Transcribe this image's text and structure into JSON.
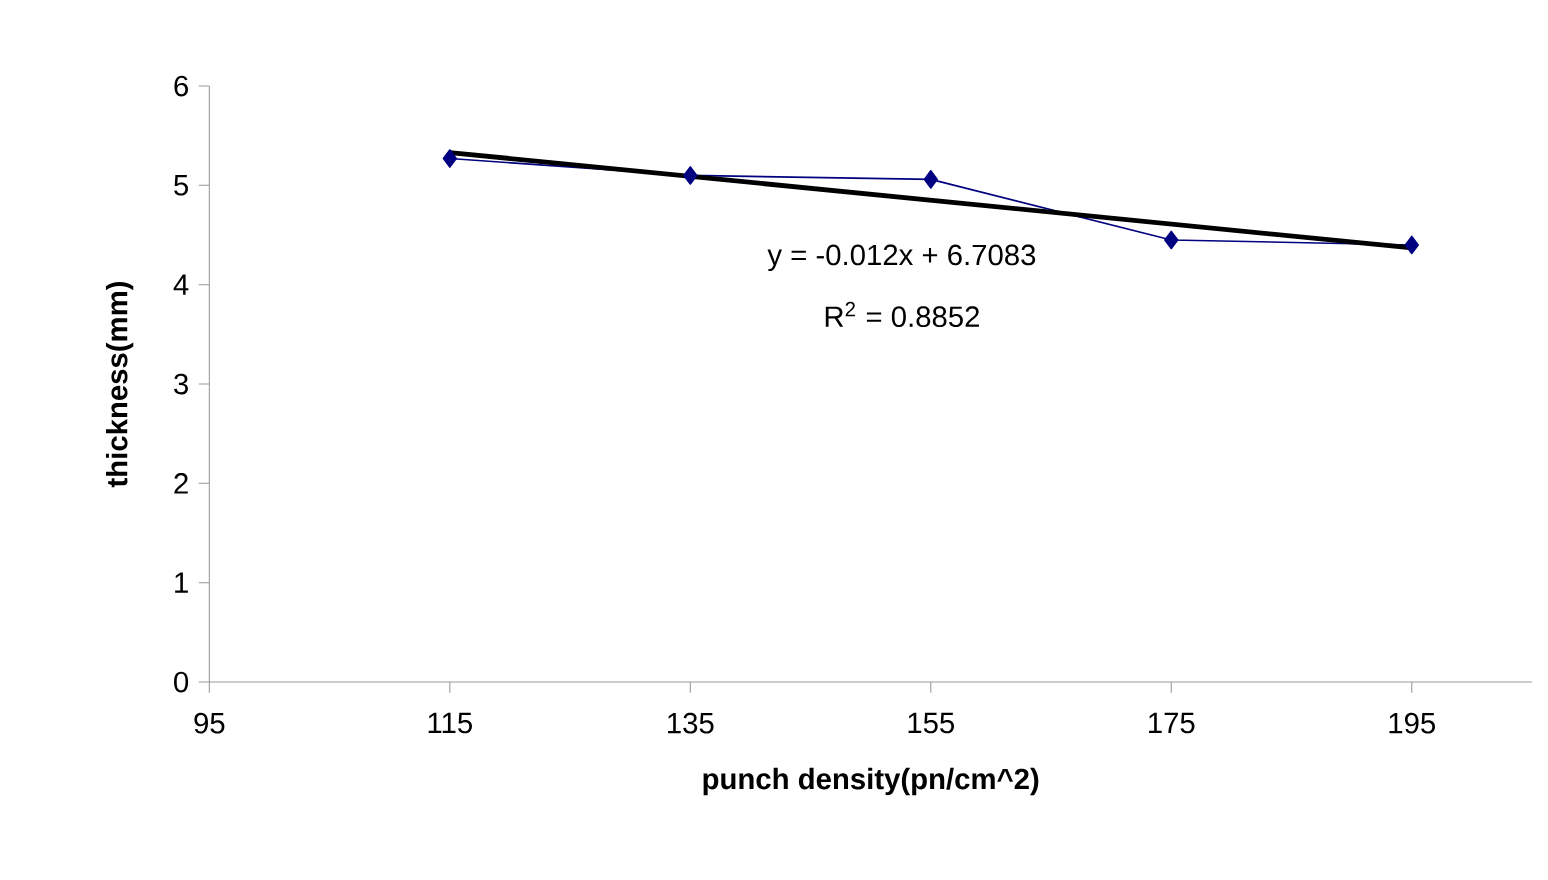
{
  "chart_data": {
    "type": "line",
    "xlabel": "punch density(pn/cm^2)",
    "ylabel": "thickness(mm)",
    "xlim": [
      95,
      205
    ],
    "xticks": [
      95,
      115,
      135,
      155,
      175,
      195
    ],
    "ylim": [
      0,
      6
    ],
    "yticks": [
      0,
      1,
      2,
      3,
      4,
      5,
      6
    ],
    "grid": false,
    "series": [
      {
        "x": [
          115,
          135,
          155,
          175,
          195
        ],
        "values": [
          5.27,
          5.1,
          5.06,
          4.45,
          4.4
        ],
        "color": "#000080",
        "marker": "diamond"
      },
      {
        "type": "line",
        "x": [
          115,
          195
        ],
        "values": [
          5.33,
          4.37
        ],
        "color": "#000000",
        "marker": "none"
      }
    ],
    "annotations": [
      "y = -0.012x + 6.7083",
      "R$^{2}$ = 0.8852"
    ]
  }
}
